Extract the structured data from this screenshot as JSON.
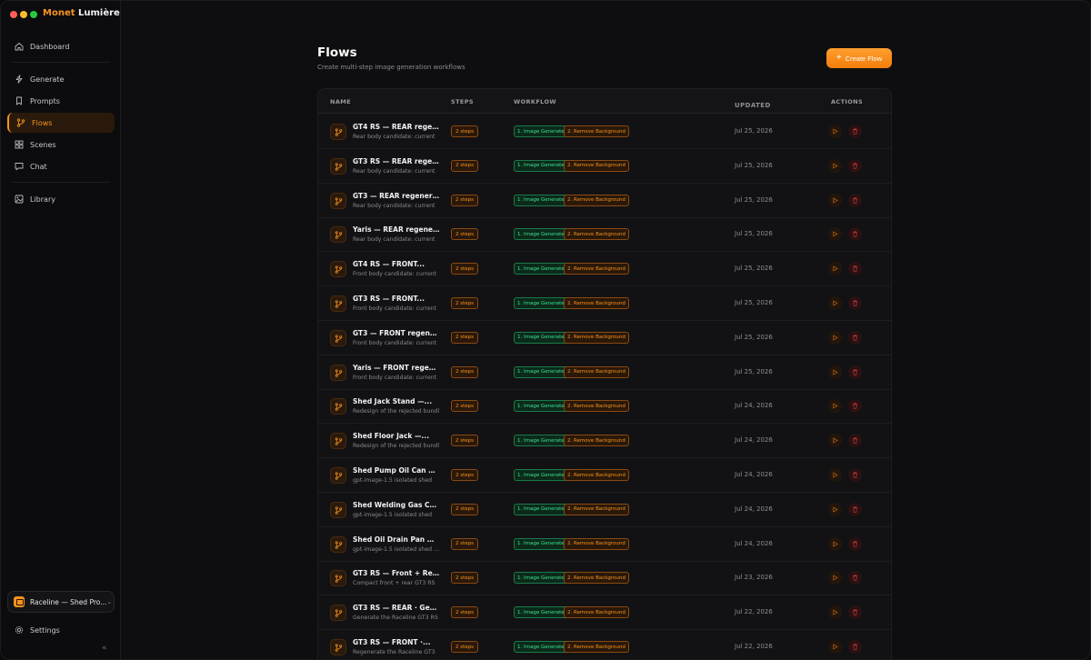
{
  "app": {
    "brand_part1": "Monet",
    "brand_part2": "Lumière"
  },
  "sidebar": {
    "items": [
      {
        "label": "Dashboard",
        "icon": "home-icon"
      },
      {
        "label": "Generate",
        "icon": "bolt-icon"
      },
      {
        "label": "Prompts",
        "icon": "bookmark-icon"
      },
      {
        "label": "Flows",
        "icon": "flow-icon",
        "active": true
      },
      {
        "label": "Scenes",
        "icon": "grid-icon"
      },
      {
        "label": "Chat",
        "icon": "chat-icon"
      },
      {
        "label": "Library",
        "icon": "image-icon"
      }
    ],
    "workspace": "Raceline — Shed Pro...",
    "settings": "Settings"
  },
  "page": {
    "title": "Flows",
    "subtitle": "Create multi-step image generation workflows",
    "create_label": "Create Flow"
  },
  "table": {
    "headers": {
      "name": "NAME",
      "steps": "STEPS",
      "workflow": "WORKFLOW",
      "updated": "UPDATED",
      "actions": "ACTIONS"
    },
    "rows": [
      {
        "title": "GT4 RS — REAR regenerate",
        "desc": "Rear body candidate: current",
        "steps": "2 steps",
        "wf1": "1. Image Generate",
        "wf2": "2. Remove Background",
        "updated": "Jul 25, 2026"
      },
      {
        "title": "GT3 RS — REAR regenerate",
        "desc": "Rear body candidate: current",
        "steps": "2 steps",
        "wf1": "1. Image Generate",
        "wf2": "2. Remove Background",
        "updated": "Jul 25, 2026"
      },
      {
        "title": "GT3 — REAR regenerate ...",
        "desc": "Rear body candidate: current",
        "steps": "2 steps",
        "wf1": "1. Image Generate",
        "wf2": "2. Remove Background",
        "updated": "Jul 25, 2026"
      },
      {
        "title": "Yaris — REAR regenerate ...",
        "desc": "Rear body candidate: current",
        "steps": "2 steps",
        "wf1": "1. Image Generate",
        "wf2": "2. Remove Background",
        "updated": "Jul 25, 2026"
      },
      {
        "title": "GT4 RS — FRONT...",
        "desc": "Front body candidate: current",
        "steps": "2 steps",
        "wf1": "1. Image Generate",
        "wf2": "2. Remove Background",
        "updated": "Jul 25, 2026"
      },
      {
        "title": "GT3 RS — FRONT...",
        "desc": "Front body candidate: current",
        "steps": "2 steps",
        "wf1": "1. Image Generate",
        "wf2": "2. Remove Background",
        "updated": "Jul 25, 2026"
      },
      {
        "title": "GT3 — FRONT regenerate",
        "desc": "Front body candidate: current",
        "steps": "2 steps",
        "wf1": "1. Image Generate",
        "wf2": "2. Remove Background",
        "updated": "Jul 25, 2026"
      },
      {
        "title": "Yaris — FRONT regenerate",
        "desc": "Front body candidate: current",
        "steps": "2 steps",
        "wf1": "1. Image Generate",
        "wf2": "2. Remove Background",
        "updated": "Jul 25, 2026"
      },
      {
        "title": "Shed Jack Stand —...",
        "desc": "Redesign of the rejected bundl",
        "steps": "2 steps",
        "wf1": "1. Image Generate",
        "wf2": "2. Remove Background",
        "updated": "Jul 24, 2026"
      },
      {
        "title": "Shed Floor Jack —...",
        "desc": "Redesign of the rejected bundl",
        "steps": "2 steps",
        "wf1": "1. Image Generate",
        "wf2": "2. Remove Background",
        "updated": "Jul 24, 2026"
      },
      {
        "title": "Shed Pump Oil Can —...",
        "desc": "gpt-image-1.5 isolated shed",
        "steps": "2 steps",
        "wf1": "1. Image Generate",
        "wf2": "2. Remove Background",
        "updated": "Jul 24, 2026"
      },
      {
        "title": "Shed Welding Gas Cylinde",
        "desc": "gpt-image-1.5 isolated shed",
        "steps": "2 steps",
        "wf1": "1. Image Generate",
        "wf2": "2. Remove Background",
        "updated": "Jul 24, 2026"
      },
      {
        "title": "Shed Oil Drain Pan —...",
        "desc": "gpt-image-1.5 isolated shed oil",
        "steps": "2 steps",
        "wf1": "1. Image Generate",
        "wf2": "2. Remove Background",
        "updated": "Jul 24, 2026"
      },
      {
        "title": "GT3 RS — Front + Rear...",
        "desc": "Compact front + rear GT3 RS",
        "steps": "2 steps",
        "wf1": "1. Image Generate",
        "wf2": "2. Remove Background",
        "updated": "Jul 23, 2026"
      },
      {
        "title": "GT3 RS — REAR · Generat",
        "desc": "Generate the Raceline GT3 RS",
        "steps": "2 steps",
        "wf1": "1. Image Generate",
        "wf2": "2. Remove Background",
        "updated": "Jul 22, 2026"
      },
      {
        "title": "GT3 RS — FRONT ·...",
        "desc": "Regenerate the Raceline GT3",
        "steps": "2 steps",
        "wf1": "1. Image Generate",
        "wf2": "2. Remove Background",
        "updated": "Jul 22, 2026"
      }
    ]
  }
}
